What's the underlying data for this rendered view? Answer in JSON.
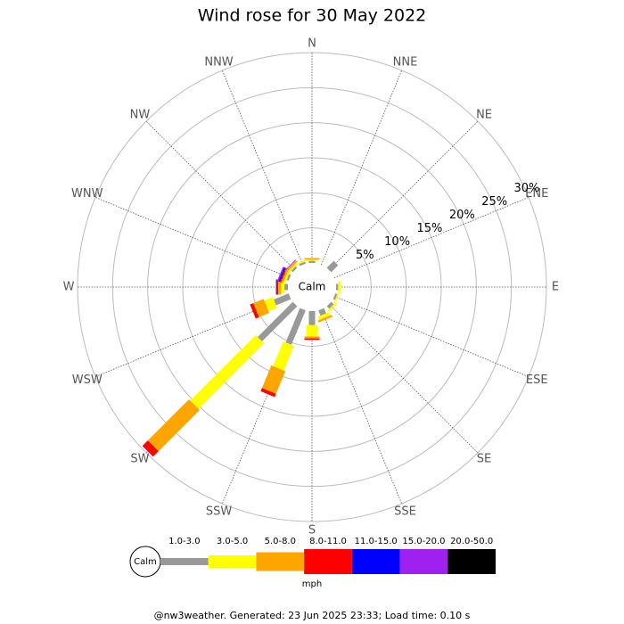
{
  "chart_data": {
    "type": "windrose",
    "title": "Wind rose for 30 May 2022",
    "center_label": "Calm",
    "directions": [
      "N",
      "NNE",
      "NE",
      "ENE",
      "E",
      "ESE",
      "SE",
      "SSE",
      "S",
      "SSW",
      "SW",
      "WSW",
      "W",
      "WNW",
      "NW",
      "NNW"
    ],
    "rlim": [
      0,
      30
    ],
    "rticks": [
      {
        "value": 5,
        "label": "5%"
      },
      {
        "value": 10,
        "label": "10%"
      },
      {
        "value": 15,
        "label": "15%"
      },
      {
        "value": 20,
        "label": "20%"
      },
      {
        "value": 25,
        "label": "25%"
      },
      {
        "value": 30,
        "label": "30%"
      }
    ],
    "series": [
      {
        "name": "1.0-3.0",
        "color": "#999999",
        "values": [
          0.3,
          0,
          1.4,
          0,
          0.3,
          0.3,
          0.5,
          0.8,
          2.0,
          5.3,
          7.1,
          2.3,
          0.5,
          0.3,
          0.3,
          0.3
        ]
      },
      {
        "name": "3.0-5.0",
        "color": "#ffff00",
        "values": [
          0.2,
          0,
          0,
          0,
          0.4,
          0.2,
          0.3,
          0.5,
          1.6,
          3.8,
          13.2,
          1.3,
          0.5,
          0.3,
          0.3,
          0.2
        ]
      },
      {
        "name": "5.0-8.0",
        "color": "#ffa500",
        "values": [
          0.2,
          0,
          0,
          0,
          0,
          0,
          0,
          0.3,
          0.3,
          3.5,
          8.3,
          1.6,
          0.4,
          0.3,
          0.3,
          0
        ]
      },
      {
        "name": "8.0-11.0",
        "color": "#ff0000",
        "values": [
          0,
          0,
          0,
          0,
          0,
          0,
          0,
          0,
          0.2,
          0.5,
          1.1,
          0.5,
          0.2,
          0.2,
          0,
          0
        ]
      },
      {
        "name": "11.0-15.0",
        "color": "#0000ff",
        "values": [
          0,
          0,
          0,
          0,
          0,
          0,
          0,
          0,
          0,
          0,
          0,
          0,
          0.1,
          0.2,
          0,
          0
        ]
      },
      {
        "name": "15.0-20.0",
        "color": "#a020f0",
        "values": [
          0,
          0,
          0,
          0,
          0,
          0,
          0,
          0,
          0,
          0,
          0,
          0,
          0,
          0.2,
          0.1,
          0
        ]
      },
      {
        "name": "20.0-50.0",
        "color": "#000000",
        "values": [
          0,
          0,
          0,
          0,
          0,
          0,
          0,
          0,
          0,
          0,
          0,
          0,
          0,
          0,
          0,
          0
        ]
      }
    ],
    "unit": "mph",
    "footer": "@nw3weather. Generated: 23 Jun 2025 23:33; Load time: 0.10 s"
  }
}
